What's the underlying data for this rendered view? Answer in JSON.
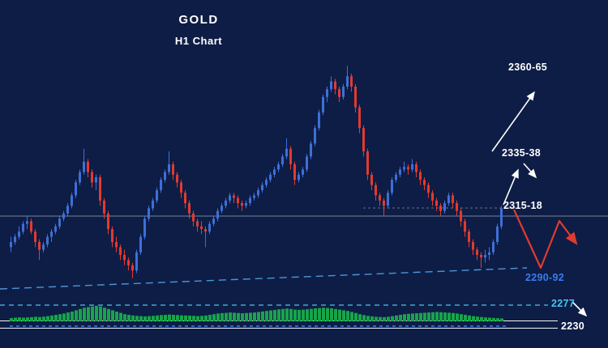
{
  "colors": {
    "background": "#0e1d45",
    "bull": "#3e6fd9",
    "bear": "#e23a30",
    "trendline": "#4f9de2",
    "level_blue": "#3b7bf0",
    "level_cyan": "#45c5f2",
    "osc_green": "#17a44b",
    "osc_blue": "#2f6fe4",
    "text": "#ffffff"
  },
  "chart_data": {
    "type": "candlestick",
    "title": "GOLD",
    "subtitle": "H1 Chart",
    "ylim": [
      2288,
      2378
    ],
    "price_levels": [
      {
        "label": "2360-65",
        "color": "#ffffff"
      },
      {
        "label": "2335-38",
        "color": "#ffffff"
      },
      {
        "label": "2315-18",
        "color": "#ffffff"
      },
      {
        "label": "2290-92",
        "color": "#3b7bf0"
      },
      {
        "label": "2277",
        "color": "#45c5f2"
      },
      {
        "label": "2230",
        "color": "#ffffff"
      }
    ],
    "candles": [
      [
        2304,
        2308,
        2302,
        2306
      ],
      [
        2306,
        2309,
        2305,
        2308
      ],
      [
        2308,
        2312,
        2307,
        2310
      ],
      [
        2310,
        2314,
        2309,
        2313
      ],
      [
        2313,
        2316,
        2311,
        2314
      ],
      [
        2314,
        2315,
        2309,
        2310
      ],
      [
        2310,
        2311,
        2304,
        2306
      ],
      [
        2306,
        2307,
        2299,
        2303
      ],
      [
        2303,
        2306,
        2302,
        2305
      ],
      [
        2305,
        2309,
        2304,
        2308
      ],
      [
        2308,
        2311,
        2306,
        2310
      ],
      [
        2310,
        2313,
        2309,
        2312
      ],
      [
        2312,
        2316,
        2311,
        2315
      ],
      [
        2315,
        2318,
        2314,
        2317
      ],
      [
        2317,
        2321,
        2316,
        2320
      ],
      [
        2320,
        2325,
        2319,
        2324
      ],
      [
        2324,
        2330,
        2323,
        2329
      ],
      [
        2329,
        2334,
        2328,
        2333
      ],
      [
        2333,
        2342,
        2332,
        2337
      ],
      [
        2337,
        2338,
        2331,
        2333
      ],
      [
        2333,
        2334,
        2327,
        2329
      ],
      [
        2329,
        2332,
        2326,
        2331
      ],
      [
        2331,
        2332,
        2320,
        2322
      ],
      [
        2322,
        2323,
        2315,
        2317
      ],
      [
        2317,
        2318,
        2309,
        2311
      ],
      [
        2311,
        2312,
        2304,
        2306
      ],
      [
        2306,
        2308,
        2302,
        2304
      ],
      [
        2304,
        2305,
        2299,
        2301
      ],
      [
        2301,
        2303,
        2297,
        2299
      ],
      [
        2299,
        2300,
        2295,
        2297
      ],
      [
        2297,
        2298,
        2292,
        2295
      ],
      [
        2295,
        2303,
        2294,
        2302
      ],
      [
        2302,
        2309,
        2301,
        2308
      ],
      [
        2308,
        2316,
        2307,
        2315
      ],
      [
        2315,
        2320,
        2314,
        2319
      ],
      [
        2319,
        2323,
        2318,
        2322
      ],
      [
        2322,
        2327,
        2321,
        2326
      ],
      [
        2326,
        2331,
        2325,
        2330
      ],
      [
        2330,
        2334,
        2329,
        2333
      ],
      [
        2333,
        2341,
        2332,
        2336
      ],
      [
        2336,
        2337,
        2330,
        2332
      ],
      [
        2332,
        2333,
        2327,
        2329
      ],
      [
        2329,
        2330,
        2323,
        2325
      ],
      [
        2325,
        2326,
        2319,
        2321
      ],
      [
        2321,
        2322,
        2315,
        2317
      ],
      [
        2317,
        2318,
        2312,
        2314
      ],
      [
        2314,
        2315,
        2310,
        2312
      ],
      [
        2312,
        2314,
        2309,
        2311
      ],
      [
        2311,
        2312,
        2304,
        2310
      ],
      [
        2310,
        2314,
        2309,
        2313
      ],
      [
        2313,
        2316,
        2312,
        2315
      ],
      [
        2315,
        2319,
        2314,
        2318
      ],
      [
        2318,
        2321,
        2317,
        2320
      ],
      [
        2320,
        2323,
        2319,
        2322
      ],
      [
        2322,
        2325,
        2321,
        2324
      ],
      [
        2324,
        2325,
        2321,
        2323
      ],
      [
        2323,
        2324,
        2319,
        2321
      ],
      [
        2321,
        2322,
        2318,
        2320
      ],
      [
        2320,
        2322,
        2319,
        2321
      ],
      [
        2321,
        2324,
        2320,
        2323
      ],
      [
        2323,
        2325,
        2322,
        2324
      ],
      [
        2324,
        2327,
        2323,
        2326
      ],
      [
        2326,
        2329,
        2325,
        2328
      ],
      [
        2328,
        2331,
        2327,
        2330
      ],
      [
        2330,
        2333,
        2329,
        2332
      ],
      [
        2332,
        2335,
        2331,
        2334
      ],
      [
        2334,
        2337,
        2333,
        2336
      ],
      [
        2336,
        2340,
        2335,
        2339
      ],
      [
        2339,
        2346,
        2338,
        2342
      ],
      [
        2342,
        2343,
        2334,
        2336
      ],
      [
        2336,
        2337,
        2328,
        2330
      ],
      [
        2330,
        2333,
        2329,
        2332
      ],
      [
        2332,
        2335,
        2331,
        2334
      ],
      [
        2334,
        2340,
        2333,
        2339
      ],
      [
        2339,
        2345,
        2338,
        2344
      ],
      [
        2344,
        2351,
        2343,
        2350
      ],
      [
        2350,
        2357,
        2349,
        2356
      ],
      [
        2356,
        2363,
        2355,
        2362
      ],
      [
        2362,
        2366,
        2360,
        2365
      ],
      [
        2365,
        2370,
        2364,
        2368
      ],
      [
        2368,
        2369,
        2363,
        2365
      ],
      [
        2365,
        2366,
        2360,
        2362
      ],
      [
        2362,
        2367,
        2361,
        2366
      ],
      [
        2366,
        2374,
        2365,
        2370
      ],
      [
        2370,
        2371,
        2364,
        2366
      ],
      [
        2366,
        2367,
        2356,
        2358
      ],
      [
        2358,
        2359,
        2348,
        2350
      ],
      [
        2350,
        2351,
        2339,
        2341
      ],
      [
        2341,
        2342,
        2330,
        2332
      ],
      [
        2332,
        2333,
        2326,
        2328
      ],
      [
        2328,
        2329,
        2322,
        2324
      ],
      [
        2324,
        2325,
        2320,
        2322
      ],
      [
        2322,
        2323,
        2316,
        2320
      ],
      [
        2320,
        2326,
        2319,
        2325
      ],
      [
        2325,
        2331,
        2324,
        2330
      ],
      [
        2330,
        2333,
        2329,
        2332
      ],
      [
        2332,
        2335,
        2331,
        2334
      ],
      [
        2334,
        2337,
        2333,
        2335
      ],
      [
        2335,
        2336,
        2332,
        2334
      ],
      [
        2334,
        2338,
        2333,
        2336
      ],
      [
        2336,
        2337,
        2331,
        2333
      ],
      [
        2333,
        2334,
        2328,
        2330
      ],
      [
        2330,
        2331,
        2326,
        2328
      ],
      [
        2328,
        2329,
        2323,
        2325
      ],
      [
        2325,
        2326,
        2320,
        2322
      ],
      [
        2322,
        2323,
        2318,
        2320
      ],
      [
        2320,
        2321,
        2316,
        2318
      ],
      [
        2318,
        2322,
        2317,
        2321
      ],
      [
        2321,
        2325,
        2320,
        2324
      ],
      [
        2324,
        2325,
        2319,
        2321
      ],
      [
        2321,
        2322,
        2316,
        2318
      ],
      [
        2318,
        2319,
        2312,
        2314
      ],
      [
        2314,
        2315,
        2308,
        2310
      ],
      [
        2310,
        2311,
        2304,
        2306
      ],
      [
        2306,
        2307,
        2301,
        2303
      ],
      [
        2303,
        2304,
        2299,
        2301
      ],
      [
        2301,
        2302,
        2296,
        2300
      ],
      [
        2300,
        2303,
        2298,
        2301
      ],
      [
        2301,
        2304,
        2299,
        2302
      ],
      [
        2302,
        2307,
        2301,
        2306
      ],
      [
        2306,
        2313,
        2305,
        2312
      ],
      [
        2312,
        2320,
        2311,
        2319
      ]
    ],
    "oscillator": {
      "values": [
        0.25,
        0.28,
        0.3,
        0.28,
        0.3,
        0.32,
        0.35,
        0.33,
        0.36,
        0.4,
        0.45,
        0.5,
        0.55,
        0.6,
        0.68,
        0.75,
        0.85,
        0.95,
        1.05,
        1.1,
        1.15,
        1.2,
        1.15,
        1.05,
        0.95,
        0.85,
        0.75,
        0.65,
        0.55,
        0.5,
        0.45,
        0.42,
        0.4,
        0.38,
        0.4,
        0.42,
        0.45,
        0.48,
        0.5,
        0.52,
        0.5,
        0.48,
        0.46,
        0.45,
        0.44,
        0.42,
        0.4,
        0.42,
        0.45,
        0.5,
        0.55,
        0.6,
        0.63,
        0.65,
        0.68,
        0.66,
        0.64,
        0.62,
        0.64,
        0.66,
        0.68,
        0.72,
        0.76,
        0.8,
        0.84,
        0.88,
        0.92,
        0.95,
        0.98,
        0.95,
        0.9,
        0.88,
        0.9,
        0.93,
        0.96,
        1.0,
        1.02,
        1.05,
        1.03,
        1.0,
        0.95,
        0.9,
        0.85,
        0.8,
        0.72,
        0.64,
        0.55,
        0.48,
        0.42,
        0.38,
        0.35,
        0.33,
        0.32,
        0.35,
        0.4,
        0.45,
        0.5,
        0.55,
        0.58,
        0.6,
        0.62,
        0.64,
        0.66,
        0.68,
        0.7,
        0.72,
        0.7,
        0.68,
        0.66,
        0.64,
        0.6,
        0.55,
        0.5,
        0.45,
        0.4,
        0.36,
        0.33,
        0.3,
        0.28,
        0.26,
        0.24,
        0.22
      ]
    }
  }
}
